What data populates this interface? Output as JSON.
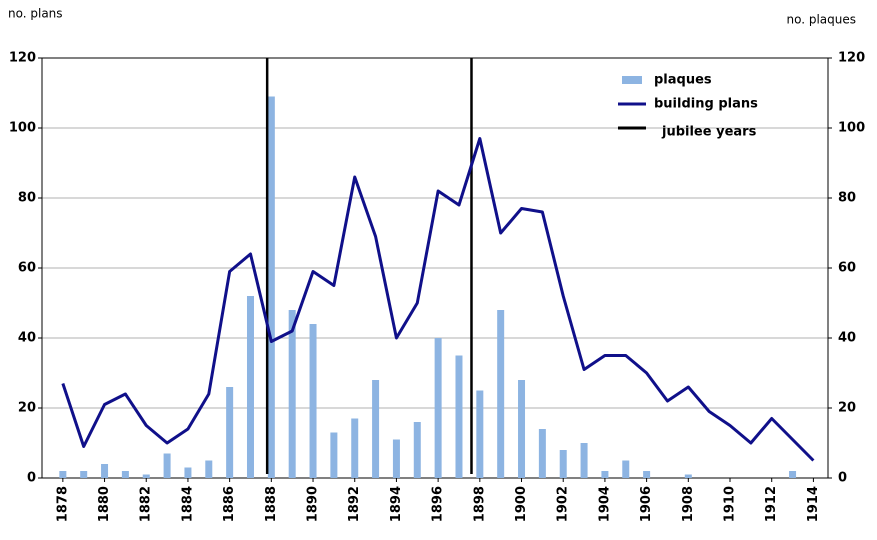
{
  "chart_data": {
    "type": "bar",
    "y_label": "no. plans",
    "y2_label": "no. plaques",
    "x": [
      1878,
      1879,
      1880,
      1881,
      1882,
      1883,
      1884,
      1885,
      1886,
      1887,
      1888,
      1889,
      1890,
      1891,
      1892,
      1893,
      1894,
      1895,
      1896,
      1897,
      1898,
      1899,
      1900,
      1901,
      1902,
      1903,
      1904,
      1905,
      1906,
      1907,
      1908,
      1909,
      1910,
      1911,
      1912,
      1913,
      1914
    ],
    "xlim": [
      1877,
      1914.7
    ],
    "xticks": [
      1878,
      1880,
      1882,
      1884,
      1886,
      1888,
      1890,
      1892,
      1894,
      1896,
      1898,
      1900,
      1902,
      1904,
      1906,
      1908,
      1910,
      1912,
      1914
    ],
    "ylim": [
      0,
      120
    ],
    "yticks": [
      0,
      20,
      40,
      60,
      80,
      100,
      120
    ],
    "y2lim": [
      0,
      120
    ],
    "y2ticks": [
      0,
      20,
      40,
      60,
      80,
      100,
      120
    ],
    "grid": true,
    "legend": "upper right",
    "series": [
      {
        "name": "plaques",
        "type": "bar",
        "axis": "y2",
        "color": "#8db4e2",
        "values": [
          2,
          2,
          4,
          2,
          1,
          7,
          3,
          5,
          26,
          52,
          109,
          48,
          44,
          13,
          17,
          28,
          11,
          16,
          40,
          35,
          25,
          48,
          28,
          14,
          8,
          10,
          2,
          5,
          2,
          0,
          1,
          0,
          0,
          0,
          0,
          2,
          0
        ]
      },
      {
        "name": "building plans",
        "type": "line",
        "color": "#10108a",
        "values": [
          27,
          9,
          21,
          24,
          15,
          10,
          14,
          24,
          59,
          64,
          39,
          42,
          59,
          55,
          86,
          69,
          40,
          50,
          82,
          78,
          97,
          70,
          77,
          76,
          52,
          31,
          35,
          35,
          30,
          22,
          26,
          19,
          15,
          10,
          17,
          11,
          5
        ]
      }
    ],
    "jubilee_years": {
      "name": "jubilee years",
      "color": "#000000",
      "x": [
        1887.8,
        1897.6
      ]
    }
  }
}
